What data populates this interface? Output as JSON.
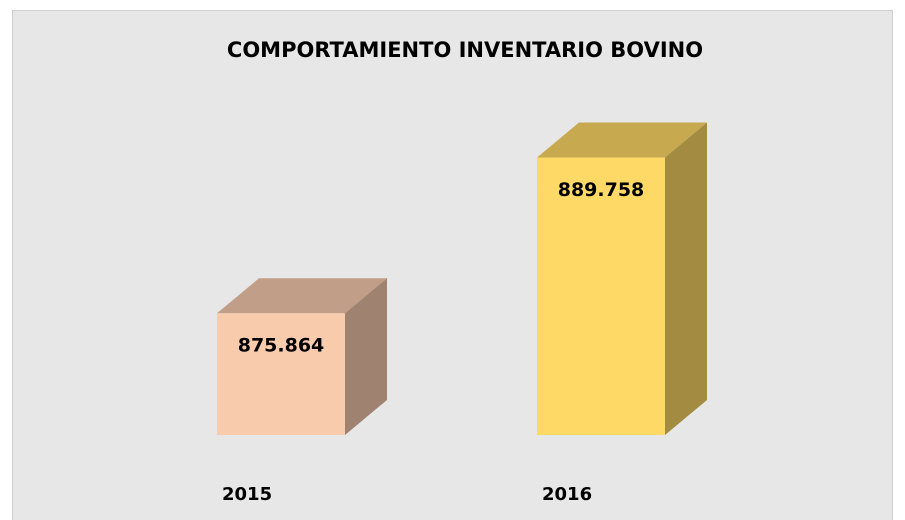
{
  "chart_data": {
    "type": "bar3d",
    "title": "COMPORTAMIENTO INVENTARIO BOVINO",
    "categories": [
      "2015",
      "2016"
    ],
    "values": [
      875864,
      889758
    ],
    "value_labels": [
      "875.864",
      "889.758"
    ],
    "colors": [
      "#f8cbad",
      "#ffd966"
    ],
    "ylim": [
      865000,
      894000
    ]
  }
}
